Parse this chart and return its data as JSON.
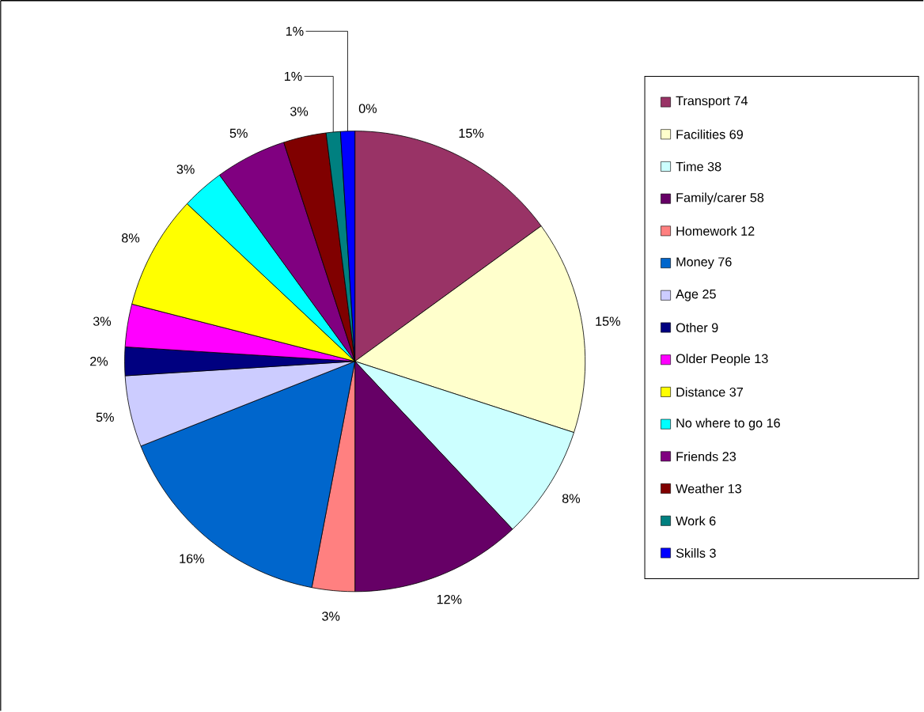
{
  "chart_data": {
    "type": "pie",
    "categories": [
      "Transport 74",
      "Facilities 69",
      "Time 38",
      "Family/carer 58",
      "Homework 12",
      "Money 76",
      "Age 25",
      "Other 9",
      "Older People 13",
      "Distance 37",
      "No where to go 16",
      "Friends 23",
      "Weather 13",
      "Work 6",
      "Skills 3",
      null
    ],
    "values": [
      15,
      15,
      8,
      12,
      3,
      16,
      5,
      2,
      3,
      8,
      3,
      5,
      3,
      1,
      1,
      0
    ],
    "value_labels": [
      "15%",
      "15%",
      "8%",
      "12%",
      "3%",
      "16%",
      "5%",
      "2%",
      "3%",
      "8%",
      "3%",
      "5%",
      "3%",
      "1%",
      "1%",
      "0%"
    ],
    "colors": [
      "#993366",
      "#ffffcc",
      "#ccffff",
      "#660066",
      "#ff8080",
      "#0066cc",
      "#ccccff",
      "#000080",
      "#ff00ff",
      "#ffff00",
      "#00ffff",
      "#800080",
      "#800000",
      "#008080",
      "#0000ff",
      "#ff0000"
    ],
    "legend": "right"
  }
}
